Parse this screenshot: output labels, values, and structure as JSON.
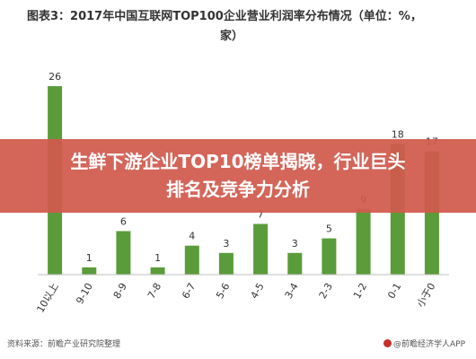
{
  "title": {
    "line1": "图表3：2017年中国互联网TOP100企业营业利润率分布情况（单位：%，",
    "line2": "家）"
  },
  "banner": {
    "line1": "生鲜下游企业TOP10榜单揭晓，行业巨头",
    "line2": "排名及竞争力分析"
  },
  "footer": {
    "source": "资料来源：前瞻产业研究院整理",
    "brand": "@前瞻经济学人APP"
  },
  "colors": {
    "bar": "#5b9c3a",
    "axis": "#bfbfbf",
    "banner": "#d1594c"
  },
  "chart_data": {
    "type": "bar",
    "categories": [
      "10以上",
      "9-10",
      "8-9",
      "7-8",
      "6-7",
      "5-6",
      "4-5",
      "3-4",
      "2-3",
      "1-2",
      "0-1",
      "小于0"
    ],
    "values": [
      26,
      1,
      6,
      1,
      4,
      3,
      7,
      3,
      5,
      9,
      18,
      17
    ],
    "title": "图表3：2017年中国互联网TOP100企业营业利润率分布情况（单位：%，家）",
    "xlabel": "",
    "ylabel": "",
    "ylim": [
      0,
      26
    ],
    "grid": false,
    "legend": "none"
  }
}
